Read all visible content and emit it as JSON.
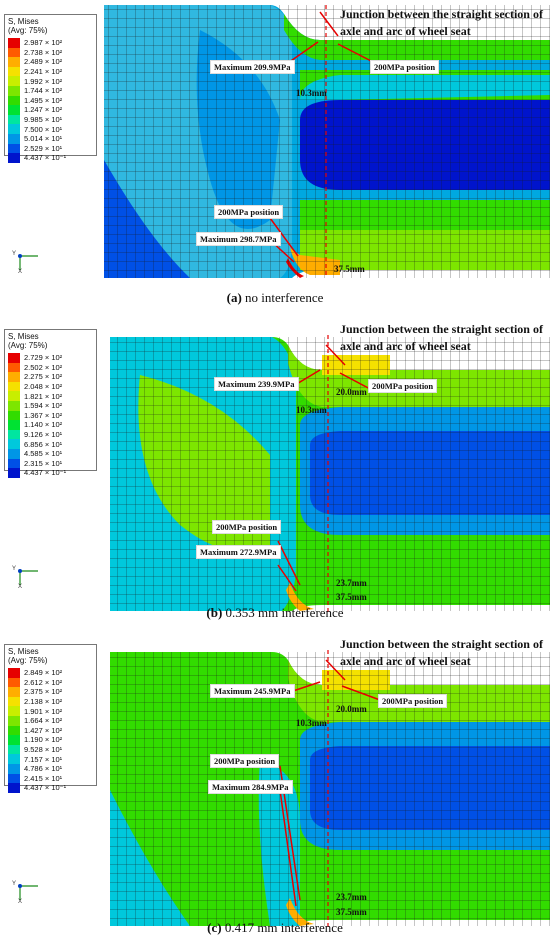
{
  "legend": {
    "title_line1": "S, Mises",
    "title_line2": "(Avg: 75%)",
    "colors": [
      "#e60000",
      "#ff5a00",
      "#ffad00",
      "#f5e100",
      "#c8ee00",
      "#7de600",
      "#32dc00",
      "#00e232",
      "#00e6a0",
      "#00c8dc",
      "#0096e6",
      "#0050e6",
      "#0014cc"
    ]
  },
  "junction_text": "Junction between the straight section of axle and arc of wheel seat",
  "panels": [
    {
      "caption_letter": "(a)",
      "caption_text": " no interference",
      "legend_values": [
        "2.987 × 10²",
        "2.738 × 10²",
        "2.489 × 10²",
        "2.241 × 10²",
        "1.992 × 10²",
        "1.744 × 10²",
        "1.495 × 10²",
        "1.247 × 10²",
        "9.985 × 10¹",
        "7.500 × 10¹",
        "5.014 × 10¹",
        "2.529 × 10¹",
        "4.437 × 10⁻¹"
      ],
      "label_top_max": "Maximum 209.9MPa",
      "label_top_200": "200MPa position",
      "label_bot_200": "200MPa position",
      "label_bot_max": "Maximum 298.7MPa",
      "dim_10": "10.3mm",
      "dim_37": "37.5mm"
    },
    {
      "caption_letter": "(b)",
      "caption_text": " 0.353 mm interference",
      "legend_values": [
        "2.729 × 10²",
        "2.502 × 10²",
        "2.275 × 10²",
        "2.048 × 10²",
        "1.821 × 10²",
        "1.594 × 10²",
        "1.367 × 10²",
        "1.140 × 10²",
        "9.126 × 10¹",
        "6.856 × 10¹",
        "4.585 × 10¹",
        "2.315 × 10¹",
        "4.437 × 10⁻¹"
      ],
      "label_top_max": "Maximum 239.9MPa",
      "label_top_200": "200MPa position",
      "label_bot_200": "200MPa position",
      "label_bot_max": "Maximum 272.9MPa",
      "dim_10": "10.3mm",
      "dim_20": "20.0mm",
      "dim_23": "23.7mm",
      "dim_37": "37.5mm"
    },
    {
      "caption_letter": "(c)",
      "caption_text": " 0.417 mm interference",
      "legend_values": [
        "2.849 × 10²",
        "2.612 × 10²",
        "2.375 × 10²",
        "2.138 × 10²",
        "1.901 × 10²",
        "1.664 × 10²",
        "1.427 × 10²",
        "1.190 × 10²",
        "9.528 × 10¹",
        "7.157 × 10¹",
        "4.786 × 10¹",
        "2.415 × 10¹",
        "4.437 × 10⁻¹"
      ],
      "label_top_max": "Maximum 245.9MPa",
      "label_top_200": "200MPa position",
      "label_bot_200": "200MPa position",
      "label_bot_max": "Maximum 284.9MPa",
      "dim_10": "10.3mm",
      "dim_20": "20.0mm",
      "dim_23": "23.7mm",
      "dim_37": "37.5mm"
    }
  ],
  "axes": {
    "y": "Y",
    "x": "X"
  }
}
